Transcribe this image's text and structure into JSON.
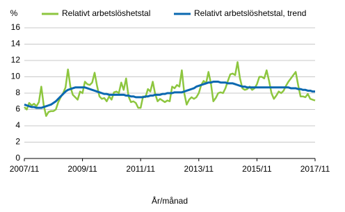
{
  "chart_data": {
    "type": "line",
    "y_axis_label": "%",
    "x_axis_label": "År/månad",
    "categories": [
      "2007/11",
      null,
      null,
      null,
      null,
      null,
      null,
      null,
      null,
      null,
      null,
      null,
      null,
      null,
      null,
      null,
      null,
      null,
      null,
      null,
      null,
      null,
      null,
      null,
      "2009/11",
      null,
      null,
      null,
      null,
      null,
      null,
      null,
      null,
      null,
      null,
      null,
      null,
      null,
      null,
      null,
      null,
      null,
      null,
      null,
      null,
      null,
      null,
      null,
      "2011/11",
      null,
      null,
      null,
      null,
      null,
      null,
      null,
      null,
      null,
      null,
      null,
      null,
      null,
      null,
      null,
      null,
      null,
      null,
      null,
      null,
      null,
      null,
      null,
      "2013/11",
      null,
      null,
      null,
      null,
      null,
      null,
      null,
      null,
      null,
      null,
      null,
      null,
      null,
      null,
      null,
      null,
      null,
      null,
      null,
      null,
      null,
      null,
      null,
      "2015/11",
      null,
      null,
      null,
      null,
      null,
      null,
      null,
      null,
      null,
      null,
      null,
      null,
      null,
      null,
      null,
      null,
      null,
      null,
      null,
      null,
      null,
      null,
      null,
      "2017/11"
    ],
    "series": [
      {
        "name": "Relativt arbetslöshetstal",
        "color": "#8dc63f",
        "values": [
          6.3,
          6.0,
          6.8,
          6.5,
          6.7,
          6.4,
          6.9,
          8.8,
          6.5,
          5.2,
          5.7,
          5.8,
          5.8,
          6.0,
          6.9,
          7.5,
          8.0,
          8.7,
          10.9,
          8.8,
          7.8,
          7.5,
          7.2,
          8.2,
          8.0,
          9.4,
          9.1,
          9.0,
          9.3,
          10.5,
          8.9,
          7.6,
          7.3,
          7.4,
          7.0,
          7.6,
          7.2,
          8.1,
          8.2,
          8.0,
          9.3,
          8.4,
          9.8,
          7.6,
          6.9,
          7.0,
          6.8,
          6.2,
          6.2,
          7.6,
          7.5,
          8.5,
          8.2,
          9.4,
          7.9,
          7.0,
          7.3,
          7.1,
          6.9,
          7.1,
          7.0,
          8.8,
          8.6,
          9.0,
          8.8,
          10.8,
          8.0,
          6.6,
          7.2,
          7.5,
          7.3,
          7.5,
          8.0,
          9.0,
          9.5,
          9.2,
          10.6,
          9.2,
          7.0,
          7.4,
          8.0,
          8.1,
          8.0,
          8.6,
          9.5,
          10.3,
          10.4,
          10.2,
          11.8,
          9.8,
          8.6,
          8.4,
          8.5,
          8.8,
          8.4,
          8.6,
          9.1,
          10.0,
          10.0,
          9.8,
          10.8,
          9.5,
          8.0,
          7.3,
          7.7,
          8.2,
          8.0,
          8.3,
          8.9,
          9.4,
          9.8,
          10.2,
          10.6,
          9.0,
          7.6,
          7.6,
          7.5,
          7.9,
          7.3,
          7.2,
          7.1
        ]
      },
      {
        "name": "Relativt arbetslöshetstal, trend",
        "color": "#0a68b0",
        "values": [
          6.6,
          6.5,
          6.4,
          6.3,
          6.3,
          6.2,
          6.2,
          6.2,
          6.3,
          6.4,
          6.5,
          6.6,
          6.8,
          7.0,
          7.3,
          7.6,
          7.9,
          8.2,
          8.4,
          8.5,
          8.6,
          8.7,
          8.7,
          8.7,
          8.7,
          8.7,
          8.6,
          8.5,
          8.4,
          8.3,
          8.2,
          8.1,
          8.0,
          7.9,
          7.9,
          7.8,
          7.8,
          7.8,
          7.8,
          7.8,
          7.8,
          7.8,
          7.7,
          7.7,
          7.6,
          7.6,
          7.5,
          7.5,
          7.5,
          7.5,
          7.6,
          7.6,
          7.7,
          7.7,
          7.8,
          7.8,
          7.8,
          7.9,
          7.9,
          8.0,
          8.0,
          8.0,
          8.1,
          8.1,
          8.1,
          8.1,
          8.2,
          8.3,
          8.4,
          8.5,
          8.6,
          8.8,
          8.9,
          9.0,
          9.1,
          9.2,
          9.3,
          9.3,
          9.4,
          9.4,
          9.4,
          9.3,
          9.3,
          9.3,
          9.2,
          9.2,
          9.2,
          9.1,
          9.0,
          8.9,
          8.8,
          8.8,
          8.7,
          8.7,
          8.7,
          8.7,
          8.7,
          8.7,
          8.7,
          8.7,
          8.7,
          8.7,
          8.7,
          8.7,
          8.7,
          8.7,
          8.7,
          8.7,
          8.7,
          8.7,
          8.6,
          8.6,
          8.6,
          8.5,
          8.5,
          8.4,
          8.4,
          8.3,
          8.3,
          8.2,
          8.2
        ]
      }
    ],
    "ylim": [
      0,
      16
    ],
    "yticks": [
      0,
      2,
      4,
      6,
      8,
      10,
      12,
      14,
      16
    ],
    "grid": true,
    "legend": "top"
  }
}
